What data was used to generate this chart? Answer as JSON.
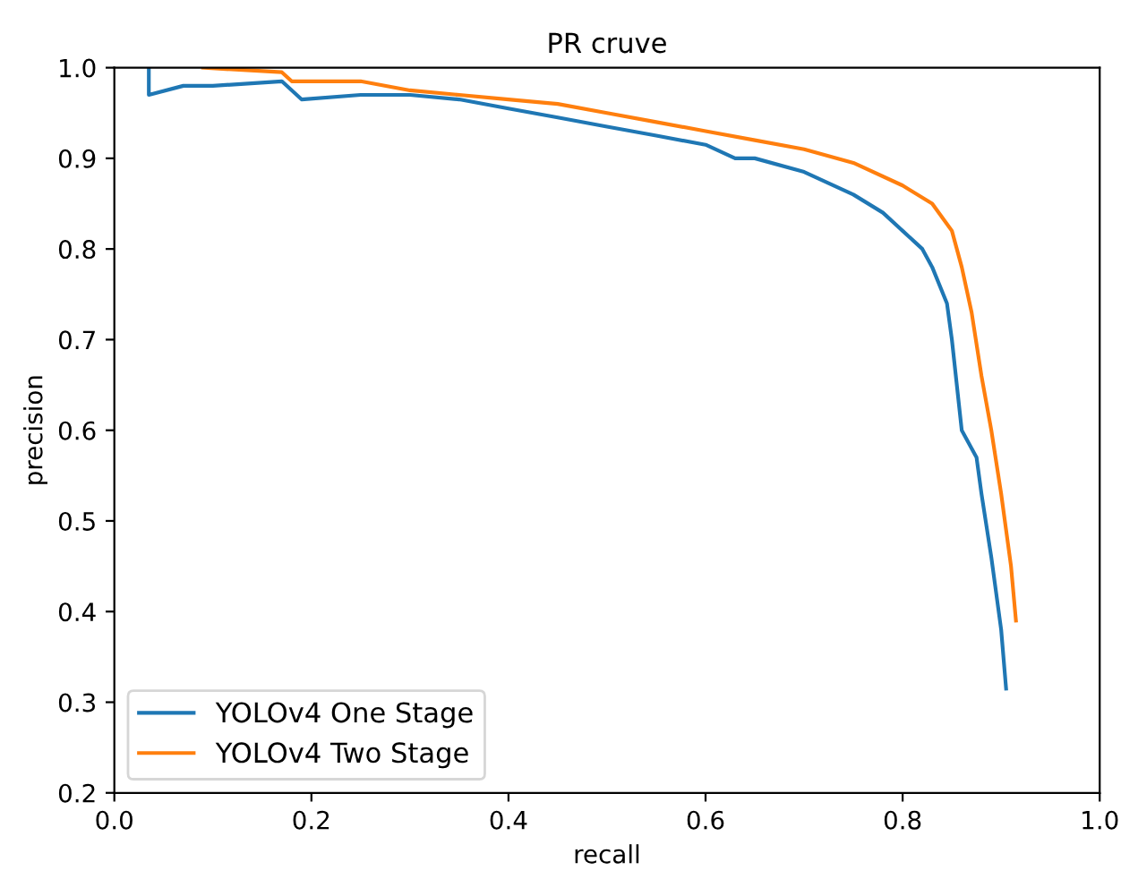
{
  "chart_data": {
    "type": "line",
    "title": "PR cruve",
    "xlabel": "recall",
    "ylabel": "precision",
    "xlim": [
      0.0,
      1.0
    ],
    "ylim": [
      0.2,
      1.0
    ],
    "xticks": [
      {
        "value": 0.0,
        "label": "0.0"
      },
      {
        "value": 0.2,
        "label": "0.2"
      },
      {
        "value": 0.4,
        "label": "0.4"
      },
      {
        "value": 0.6,
        "label": "0.6"
      },
      {
        "value": 0.8,
        "label": "0.8"
      },
      {
        "value": 1.0,
        "label": "1.0"
      }
    ],
    "yticks": [
      {
        "value": 0.2,
        "label": "0.2"
      },
      {
        "value": 0.3,
        "label": "0.3"
      },
      {
        "value": 0.4,
        "label": "0.4"
      },
      {
        "value": 0.5,
        "label": "0.5"
      },
      {
        "value": 0.6,
        "label": "0.6"
      },
      {
        "value": 0.7,
        "label": "0.7"
      },
      {
        "value": 0.8,
        "label": "0.8"
      },
      {
        "value": 0.9,
        "label": "0.9"
      },
      {
        "value": 1.0,
        "label": "1.0"
      }
    ],
    "grid": false,
    "legend": "bottom left",
    "marker": "none",
    "line_style": "solid",
    "series": [
      {
        "name": "YOLOv4 One Stage",
        "color": "#1f77b4",
        "x": [
          0.035,
          0.035,
          0.07,
          0.1,
          0.17,
          0.19,
          0.25,
          0.3,
          0.35,
          0.4,
          0.45,
          0.5,
          0.55,
          0.6,
          0.63,
          0.65,
          0.7,
          0.75,
          0.78,
          0.8,
          0.82,
          0.83,
          0.845,
          0.85,
          0.86,
          0.875,
          0.88,
          0.89,
          0.9,
          0.905
        ],
        "values": [
          1.0,
          0.97,
          0.98,
          0.98,
          0.985,
          0.965,
          0.97,
          0.97,
          0.965,
          0.955,
          0.945,
          0.935,
          0.925,
          0.915,
          0.9,
          0.9,
          0.885,
          0.86,
          0.84,
          0.82,
          0.8,
          0.78,
          0.74,
          0.7,
          0.6,
          0.57,
          0.53,
          0.46,
          0.38,
          0.315
        ]
      },
      {
        "name": "YOLOv4 Two Stage",
        "color": "#ff7f0e",
        "x": [
          0.09,
          0.17,
          0.18,
          0.25,
          0.3,
          0.35,
          0.4,
          0.45,
          0.5,
          0.55,
          0.6,
          0.65,
          0.7,
          0.75,
          0.8,
          0.83,
          0.85,
          0.86,
          0.87,
          0.88,
          0.89,
          0.9,
          0.91,
          0.915
        ],
        "values": [
          1.0,
          0.995,
          0.985,
          0.985,
          0.975,
          0.97,
          0.965,
          0.96,
          0.95,
          0.94,
          0.93,
          0.92,
          0.91,
          0.895,
          0.87,
          0.85,
          0.82,
          0.78,
          0.73,
          0.66,
          0.6,
          0.53,
          0.45,
          0.39
        ]
      }
    ]
  }
}
